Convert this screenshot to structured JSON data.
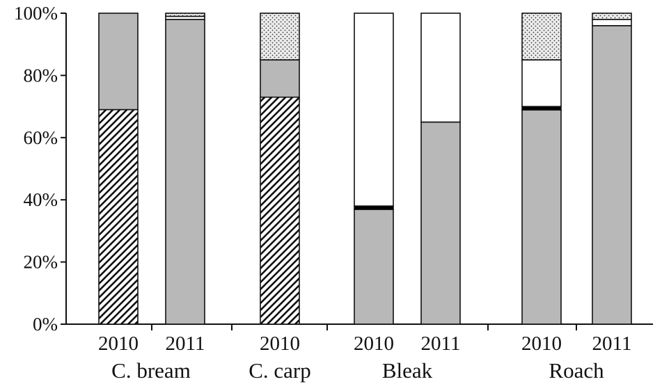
{
  "chart_data": {
    "type": "bar",
    "stacked": true,
    "percent": true,
    "ylim": [
      0,
      100
    ],
    "yticks": [
      "0%",
      "20%",
      "40%",
      "60%",
      "80%",
      "100%"
    ],
    "grid": false,
    "legend": "none",
    "bars": [
      {
        "year": "2010",
        "group": "C. bream"
      },
      {
        "year": "2011",
        "group": "C. bream"
      },
      {
        "year": "2010",
        "group": "C. carp"
      },
      {
        "year": "2010",
        "group": "Bleak"
      },
      {
        "year": "2011",
        "group": "Bleak"
      },
      {
        "year": "2010",
        "group": "Roach"
      },
      {
        "year": "2011",
        "group": "Roach"
      }
    ],
    "groups": [
      "C. bream",
      "C. carp",
      "Bleak",
      "Roach"
    ],
    "segment_order_bottom_to_top": [
      "hatched",
      "gray",
      "black",
      "white",
      "dotted"
    ],
    "series": [
      {
        "pattern": "hatched",
        "color": "#ffffff",
        "values": [
          69,
          0,
          73,
          0,
          0,
          0,
          0
        ]
      },
      {
        "pattern": "gray",
        "color": "#b8b8b8",
        "values": [
          31,
          98,
          12,
          37,
          65,
          69,
          96
        ]
      },
      {
        "pattern": "black",
        "color": "#000000",
        "values": [
          0,
          0,
          0,
          1,
          0,
          1,
          0
        ]
      },
      {
        "pattern": "white",
        "color": "#ffffff",
        "values": [
          0,
          1,
          0,
          62,
          35,
          15,
          2
        ]
      },
      {
        "pattern": "dotted",
        "color": "#e6e6e6",
        "values": [
          0,
          1,
          15,
          0,
          0,
          15,
          2
        ]
      }
    ]
  }
}
